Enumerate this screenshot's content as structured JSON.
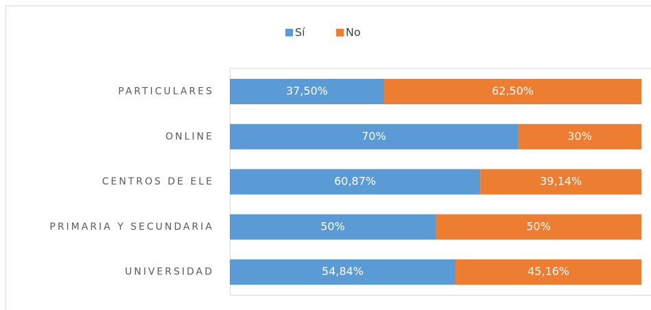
{
  "chart_data": {
    "type": "bar",
    "orientation": "horizontal",
    "stacked": true,
    "categories": [
      "PARTICULARES",
      "ONLINE",
      "CENTROS DE ELE",
      "PRIMARIA Y SECUNDARIA",
      "UNIVERSIDAD"
    ],
    "series": [
      {
        "name": "Sí",
        "color": "#5b9bd5",
        "values": [
          37.5,
          70,
          60.87,
          50,
          54.84
        ],
        "value_labels": [
          "37,50%",
          "70%",
          "60,87%",
          "50%",
          "54,84%"
        ]
      },
      {
        "name": "No",
        "color": "#ed7d31",
        "values": [
          62.5,
          30,
          39.14,
          50,
          45.16
        ],
        "value_labels": [
          "62,50%",
          "30%",
          "39,14%",
          "50%",
          "45,16%"
        ]
      }
    ],
    "xlim": [
      0,
      100
    ],
    "legend": "top"
  }
}
